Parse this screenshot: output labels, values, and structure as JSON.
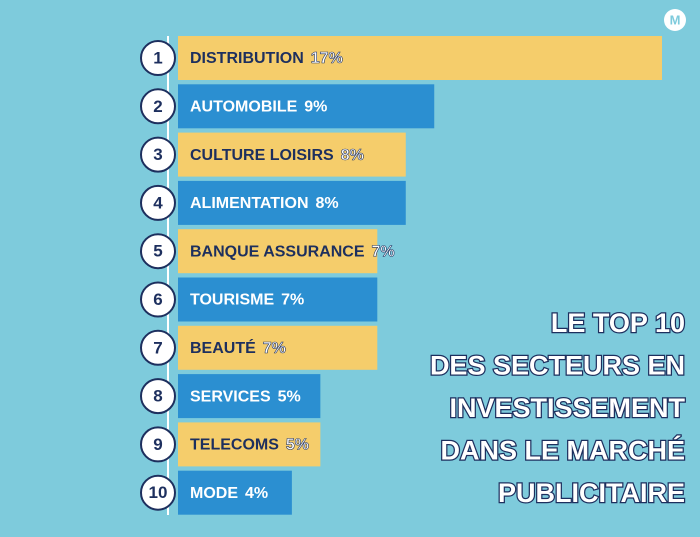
{
  "chart_data": {
    "type": "bar",
    "orientation": "horizontal",
    "title_lines": [
      "LE TOP 10",
      "DES SECTEURS EN",
      "INVESTISSEMENT",
      "DANS LE MARCHÉ",
      "PUBLICITAIRE"
    ],
    "ranks": [
      1,
      2,
      3,
      4,
      5,
      6,
      7,
      8,
      9,
      10
    ],
    "categories": [
      "DISTRIBUTION",
      "AUTOMOBILE",
      "CULTURE LOISIRS",
      "ALIMENTATION",
      "BANQUE ASSURANCE",
      "TOURISME",
      "BEAUTÉ",
      "SERVICES",
      "TELECOMS",
      "MODE"
    ],
    "values": [
      17,
      9,
      8,
      8,
      7,
      7,
      7,
      5,
      5,
      4
    ],
    "value_labels": [
      "17%",
      "9%",
      "8%",
      "8%",
      "7%",
      "7%",
      "7%",
      "5%",
      "5%",
      "4%"
    ],
    "colors": [
      "#f5cd6b",
      "#2b8fd1",
      "#f5cd6b",
      "#2b8fd1",
      "#f5cd6b",
      "#2b8fd1",
      "#f5cd6b",
      "#2b8fd1",
      "#f5cd6b",
      "#2b8fd1"
    ]
  }
}
